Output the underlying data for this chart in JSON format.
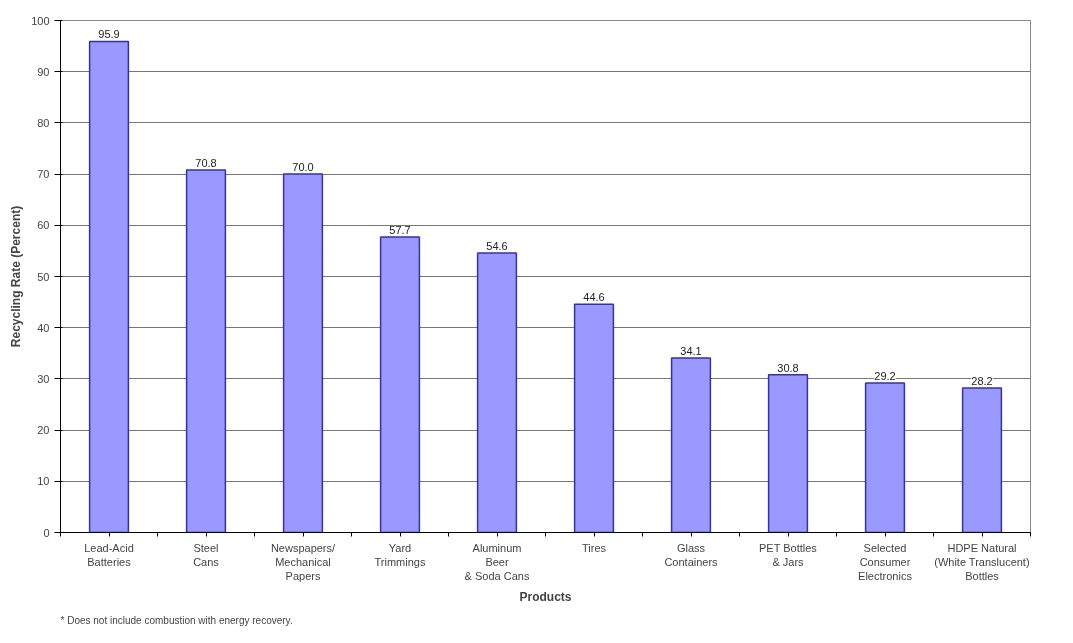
{
  "chart_data": {
    "type": "bar",
    "xlabel": "Products",
    "ylabel": "Recycling Rate (Percent)",
    "categories": [
      "Lead-Acid\nBatteries",
      "Steel\nCans",
      "Newspapers/\nMechanical\nPapers",
      "Yard\nTrimmings",
      "Aluminum\nBeer\n& Soda Cans",
      "Tires",
      "Glass\nContainers",
      "PET Bottles\n& Jars",
      "Selected\nConsumer\nElectronics",
      "HDPE Natural\n(White Translucent)\nBottles"
    ],
    "values": [
      95.9,
      70.8,
      70.0,
      57.7,
      54.6,
      44.6,
      34.1,
      30.8,
      29.2,
      28.2
    ],
    "value_labels": [
      "95.9",
      "70.8",
      "70.0",
      "57.7",
      "54.6",
      "44.6",
      "34.1",
      "30.8",
      "29.2",
      "28.2"
    ],
    "color": "#9999ff",
    "ylim": [
      0,
      100
    ],
    "yticks": [
      0,
      10,
      20,
      30,
      40,
      50,
      60,
      70,
      80,
      90,
      100
    ],
    "grid": "y",
    "annotations": [
      "* Does not include combustion with energy recovery."
    ]
  }
}
